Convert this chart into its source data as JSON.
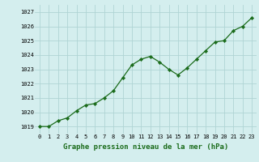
{
  "hours": [
    0,
    1,
    2,
    3,
    4,
    5,
    6,
    7,
    8,
    9,
    10,
    11,
    12,
    13,
    14,
    15,
    16,
    17,
    18,
    19,
    20,
    21,
    22,
    23
  ],
  "pressure": [
    1019.0,
    1019.0,
    1019.4,
    1019.6,
    1020.1,
    1020.5,
    1020.6,
    1021.0,
    1021.5,
    1022.4,
    1023.3,
    1023.7,
    1023.9,
    1023.5,
    1023.0,
    1022.6,
    1023.1,
    1023.7,
    1024.3,
    1024.9,
    1025.0,
    1025.7,
    1026.0,
    1026.6
  ],
  "line_color": "#1a6b1a",
  "marker_color": "#1a6b1a",
  "bg_color": "#d4eeee",
  "grid_color": "#b0d4d4",
  "xlabel": "Graphe pression niveau de la mer (hPa)",
  "xlabel_color": "#1a6b1a",
  "ylim_min": 1018.5,
  "ylim_max": 1027.5,
  "ytick_values": [
    1019,
    1020,
    1021,
    1022,
    1023,
    1024,
    1025,
    1026,
    1027
  ],
  "xtick_values": [
    0,
    1,
    2,
    3,
    4,
    5,
    6,
    7,
    8,
    9,
    10,
    11,
    12,
    13,
    14,
    15,
    16,
    17,
    18,
    19,
    20,
    21,
    22,
    23
  ]
}
